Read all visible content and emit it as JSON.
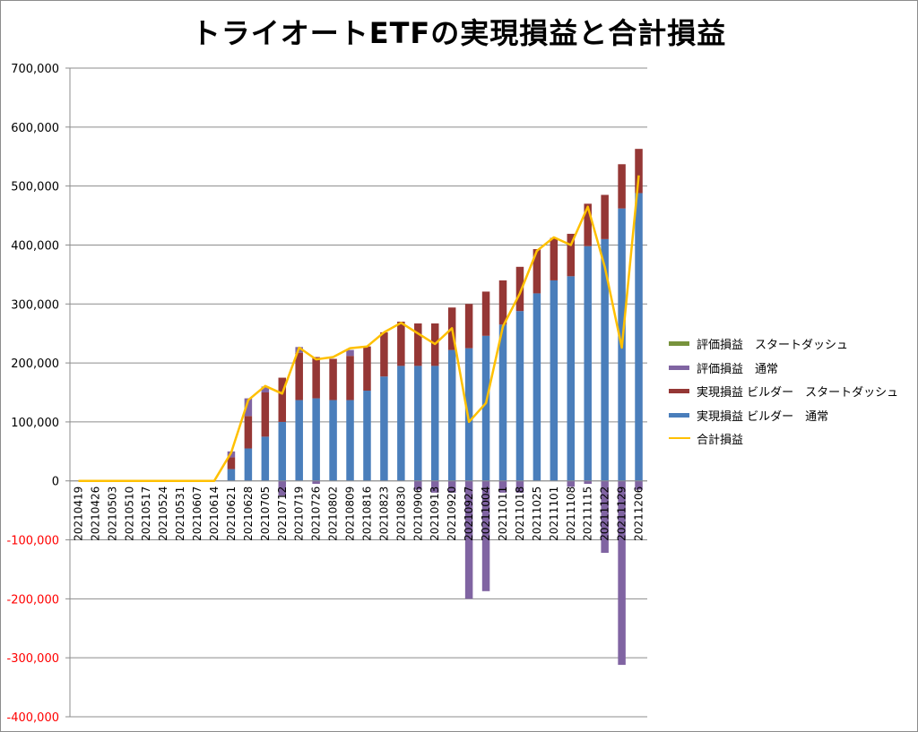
{
  "chart_data": {
    "type": "bar",
    "title": "トライオートETFの実現損益と合計損益",
    "xlabel": "",
    "ylabel": "",
    "ylim": [
      -400000,
      700000
    ],
    "yticks": [
      "700,000",
      "600,000",
      "500,000",
      "400,000",
      "300,000",
      "200,000",
      "100,000",
      "0",
      "-100,000",
      "-200,000",
      "-300,000",
      "-400,000"
    ],
    "grid": true,
    "legend_position": "right",
    "categories": [
      "20210419",
      "20210426",
      "20210503",
      "20210510",
      "20210517",
      "20210524",
      "20210531",
      "20210607",
      "20210614",
      "20210621",
      "20210628",
      "20210705",
      "20210712",
      "20210719",
      "20210726",
      "20210802",
      "20210809",
      "20210816",
      "20210823",
      "20210830",
      "20210906",
      "20210913",
      "20210920",
      "20210927",
      "20211004",
      "20211011",
      "20211018",
      "20211025",
      "20211101",
      "20211108",
      "20211115",
      "20211122",
      "20211129",
      "20211206"
    ],
    "series": [
      {
        "name": "評価損益　スタートダッシュ",
        "type": "bar",
        "color": "#77933c",
        "values": [
          0,
          0,
          0,
          0,
          0,
          0,
          0,
          0,
          0,
          0,
          0,
          0,
          0,
          0,
          0,
          0,
          0,
          0,
          0,
          0,
          0,
          0,
          0,
          0,
          0,
          0,
          0,
          0,
          0,
          0,
          0,
          0,
          0,
          0
        ]
      },
      {
        "name": "評価損益　通常",
        "type": "bar",
        "color": "#8064a2",
        "values": [
          0,
          0,
          0,
          0,
          0,
          0,
          0,
          0,
          0,
          10000,
          30000,
          10000,
          -25000,
          10000,
          -5000,
          0,
          10000,
          0,
          0,
          0,
          -15000,
          -20000,
          -20000,
          -200000,
          -187000,
          -20000,
          -20000,
          0,
          0,
          -10000,
          -5000,
          -122000,
          -312000,
          -15000
        ]
      },
      {
        "name": "実現損益 ビルダー　スタートダッシュ",
        "type": "bar",
        "color": "#953735",
        "values": [
          0,
          0,
          0,
          0,
          0,
          0,
          0,
          0,
          0,
          20000,
          55000,
          75000,
          75000,
          80000,
          70000,
          70000,
          75000,
          75000,
          75000,
          75000,
          72000,
          72000,
          72000,
          75000,
          75000,
          75000,
          75000,
          75000,
          72000,
          72000,
          72000,
          75000,
          75000,
          75000
        ]
      },
      {
        "name": "実現損益 ビルダー　通常",
        "type": "bar",
        "color": "#4a7ebb",
        "values": [
          0,
          0,
          0,
          0,
          0,
          0,
          0,
          0,
          0,
          20000,
          55000,
          75000,
          100000,
          137000,
          140000,
          137000,
          137000,
          153000,
          177000,
          195000,
          195000,
          195000,
          222000,
          225000,
          246000,
          265000,
          288000,
          318000,
          340000,
          347000,
          398000,
          410000,
          462000,
          488000
        ]
      },
      {
        "name": "合計損益",
        "type": "line",
        "color": "#ffc000",
        "values": [
          0,
          0,
          0,
          0,
          0,
          0,
          0,
          0,
          0,
          48000,
          137000,
          161000,
          148000,
          226000,
          206000,
          210000,
          225000,
          228000,
          252000,
          268000,
          250000,
          232000,
          259000,
          100000,
          132000,
          262000,
          318000,
          390000,
          413000,
          400000,
          465000,
          363000,
          226000,
          518000
        ]
      }
    ]
  }
}
